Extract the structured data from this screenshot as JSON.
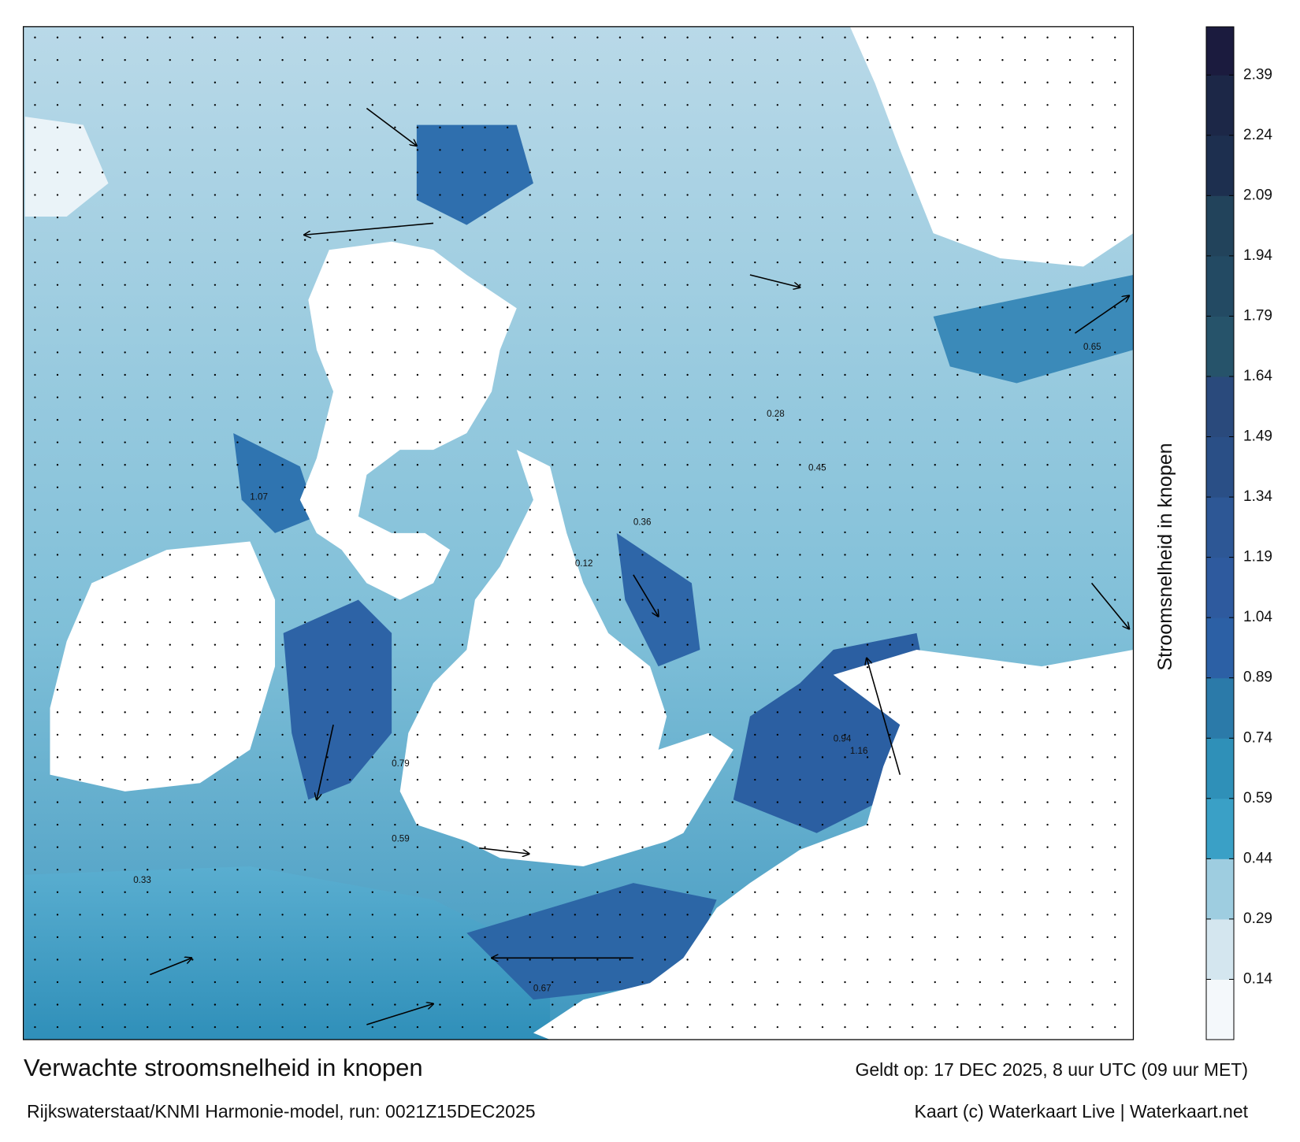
{
  "title": "Verwachte stroomsnelheid in knopen",
  "subtitle": "Rijkswaterstaat/KNMI Harmonie-model, run: 0021Z15DEC2025",
  "valid_time": "Geldt op: 17 DEC 2025, 8 uur UTC (09 uur MET)",
  "credit": "Kaart (c) Waterkaart Live | Waterkaart.net",
  "colorbar": {
    "label": "Stroomsnelheid in knopen",
    "clim": [
      -0.01,
      2.51
    ],
    "ticks": [
      0.14,
      0.29,
      0.44,
      0.59,
      0.74,
      0.89,
      1.04,
      1.19,
      1.34,
      1.49,
      1.64,
      1.79,
      1.94,
      2.09,
      2.24,
      2.39
    ],
    "colors": [
      "#f4f8fb",
      "#d4e6ef",
      "#9ecde0",
      "#3aa0c6",
      "#2f90b8",
      "#2b7aa9",
      "#2c60a5",
      "#2e5a9e",
      "#2d5795",
      "#2a4f86",
      "#2a4a7c",
      "#26536a",
      "#234a63",
      "#22435b",
      "#1d2f4f",
      "#1c2747",
      "#1b1b3e"
    ]
  },
  "map": {
    "speed_labels": [
      "0.94",
      "1.16",
      "0.67",
      "0.79",
      "0.36",
      "0.59",
      "0.28",
      "0.12",
      "0.65",
      "1.07",
      "0.33",
      "0.45"
    ]
  }
}
